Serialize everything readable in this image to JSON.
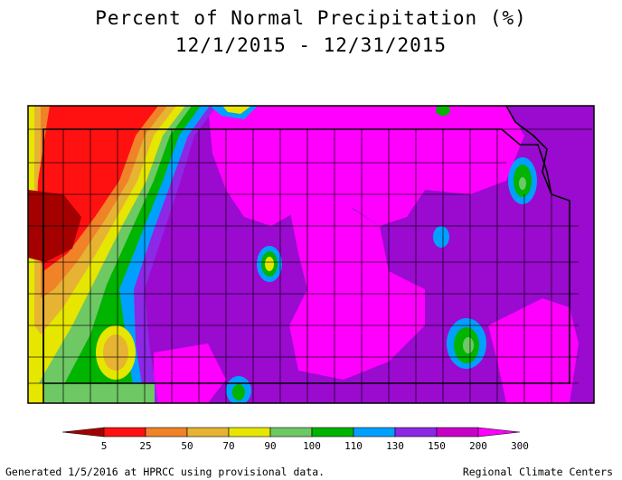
{
  "title": {
    "line1": "Percent of Normal Precipitation (%)",
    "line2": "12/1/2015 - 12/31/2015"
  },
  "legend": {
    "bins": [
      {
        "color": "#a50000"
      },
      {
        "color": "#ff1111"
      },
      {
        "color": "#f08228"
      },
      {
        "color": "#e6b432"
      },
      {
        "color": "#e6e600"
      },
      {
        "color": "#6ec864"
      },
      {
        "color": "#00b400"
      },
      {
        "color": "#00a0ff"
      },
      {
        "color": "#8c28e6"
      },
      {
        "color": "#c800c8"
      },
      {
        "color": "#ff00ff"
      }
    ],
    "tick_labels": [
      "5",
      "25",
      "50",
      "70",
      "90",
      "100",
      "110",
      "130",
      "150",
      "200",
      "300"
    ]
  },
  "footer": {
    "left": "Generated 1/5/2016 at HPRCC using provisional data.",
    "right": "Regional Climate Centers"
  },
  "colors": {
    "base_purple": "#9a0acf",
    "magenta": "#ff00ff",
    "dark_red": "#a50000",
    "red": "#ff1111",
    "orange": "#f08228",
    "gold": "#e6b432",
    "yellow": "#e6e600",
    "light_green": "#6ec864",
    "green": "#00b400",
    "blue": "#00a0ff",
    "violet": "#8c28e6"
  }
}
